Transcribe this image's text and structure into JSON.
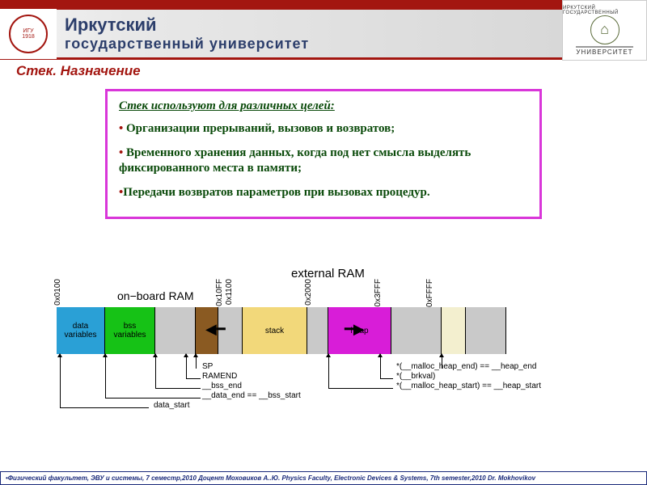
{
  "header": {
    "uni_line1": "Иркутский",
    "uni_line2": "государственный университет",
    "logo_right_top": "ИРКУТСКИЙ ГОСУДАРСТВЕННЫЙ",
    "logo_right_bottom": "УНИВЕРСИТЕТ"
  },
  "slide_title": "Стек. Назначение",
  "content": {
    "intro": "Стек используют для различных целей:",
    "bullets": [
      "Организации прерываний, вызовов и возвратов;",
      "Временного хранения данных, когда под нет смысла выделять фиксированного места в памяти;",
      "Передачи возвратов параметров при вызовах процедур."
    ]
  },
  "diagram": {
    "external_label": "external RAM",
    "onboard_label": "on−board RAM",
    "addresses": {
      "a0": "0x0100",
      "a1": "0x10FF",
      "a2": "0x1100",
      "a3": "0x2000",
      "a4": "0x3FFF",
      "a5": "0xFFFF"
    },
    "segments": [
      {
        "label": "data\nvariables",
        "width": 60,
        "color": "#2aa0d6"
      },
      {
        "label": "bss\nvariables",
        "width": 62,
        "color": "#16c216"
      },
      {
        "label": "",
        "width": 50,
        "color": "#c9c9c9"
      },
      {
        "label": "",
        "width": 28,
        "color": "#8a5a22"
      },
      {
        "label": "",
        "width": 30,
        "color": "#c9c9c9"
      },
      {
        "label": "stack",
        "width": 80,
        "color": "#f2d87a"
      },
      {
        "label": "",
        "width": 26,
        "color": "#c9c9c9"
      },
      {
        "label": "heap",
        "width": 78,
        "color": "#d81dd8"
      },
      {
        "label": "",
        "width": 62,
        "color": "#c9c9c9"
      },
      {
        "label": "",
        "width": 30,
        "color": "#f3efcf"
      },
      {
        "label": "",
        "width": 50,
        "color": "#c9c9c9"
      }
    ],
    "pointers": {
      "sp": "SP",
      "ramend": "RAMEND",
      "bss_end": "__bss_end",
      "data_end": "__data_end == __bss_start",
      "data_start": "data_start",
      "malloc_end": "*(__malloc_heap_end) == __heap_end",
      "brkval": "*(__brkval)",
      "malloc_start": "*(__malloc_heap_start) == __heap_start"
    }
  },
  "footer": "•Физический факультет, ЭВУ и системы, 7 семестр,2010 Доцент Моховиков А..Ю.      Physics Faculty, Electronic Devices & Systems, 7th semester,2010   Dr. Mokhovikov",
  "colors": {
    "brand_red": "#a31610",
    "box_border": "#d936d9",
    "text_green": "#0a4a0a",
    "footer_border": "#1a2a7a"
  }
}
